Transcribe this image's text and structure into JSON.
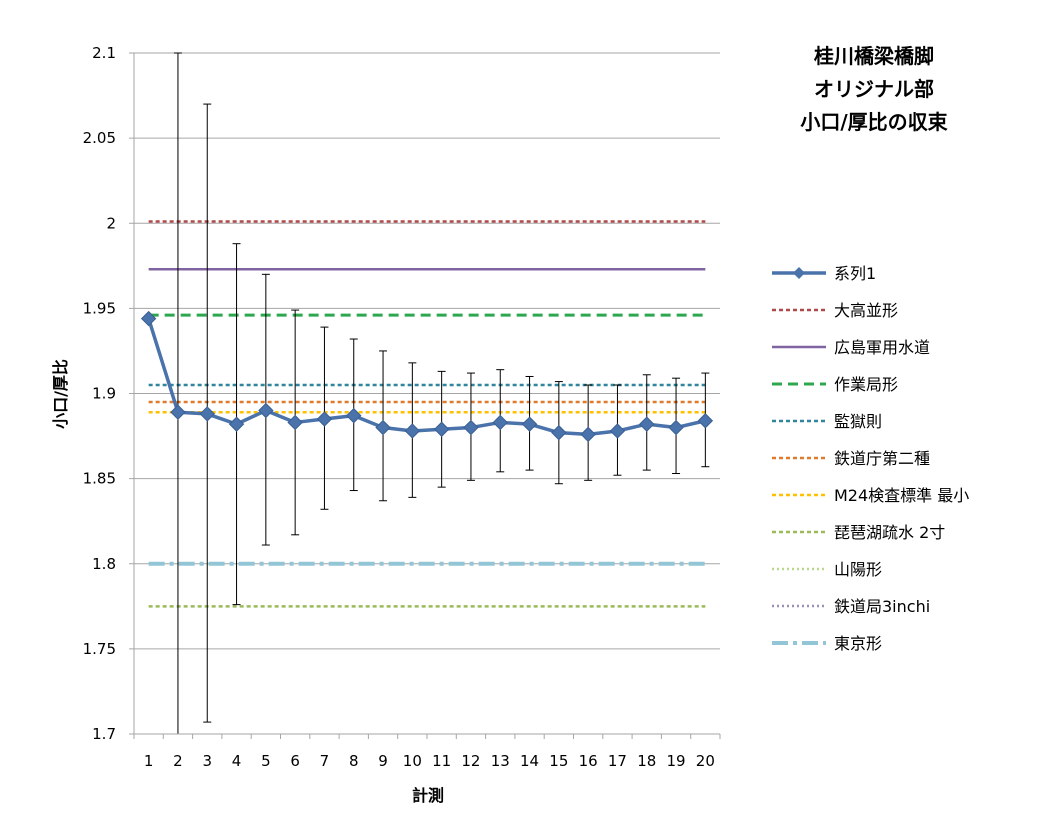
{
  "chart_data": {
    "type": "line",
    "title": [
      "桂川橋梁橋脚",
      "オリジナル部",
      "小口/厚比の収束"
    ],
    "xlabel": "計測",
    "ylabel": "小口/厚比",
    "categories": [
      "1",
      "2",
      "3",
      "4",
      "5",
      "6",
      "7",
      "8",
      "9",
      "10",
      "11",
      "12",
      "13",
      "14",
      "15",
      "16",
      "17",
      "18",
      "19",
      "20"
    ],
    "ylim": [
      1.7,
      2.1
    ],
    "yticks": [
      "1.7",
      "1.75",
      "1.8",
      "1.85",
      "1.9",
      "1.95",
      "2",
      "2.05",
      "2.1"
    ],
    "grid": "horizontal",
    "legend_position": "right",
    "series": [
      {
        "name": "系列1",
        "color": "#4a72ab",
        "values": [
          1.944,
          1.889,
          1.888,
          1.882,
          1.89,
          1.883,
          1.885,
          1.887,
          1.88,
          1.878,
          1.879,
          1.88,
          1.883,
          1.882,
          1.877,
          1.876,
          1.878,
          1.882,
          1.88,
          1.884
        ],
        "err_low": [
          1.944,
          1.7,
          1.707,
          1.776,
          1.811,
          1.817,
          1.832,
          1.843,
          1.837,
          1.839,
          1.845,
          1.849,
          1.854,
          1.855,
          1.847,
          1.849,
          1.852,
          1.855,
          1.853,
          1.857
        ],
        "err_high": [
          1.944,
          2.1,
          2.07,
          1.988,
          1.97,
          1.949,
          1.939,
          1.932,
          1.925,
          1.918,
          1.913,
          1.912,
          1.914,
          1.91,
          1.907,
          1.905,
          1.905,
          1.911,
          1.909,
          1.912
        ]
      }
    ],
    "reference_lines": [
      {
        "name": "大高並形",
        "value": 2.001,
        "color": "#b04a4a",
        "style": "dash"
      },
      {
        "name": "広島軍用水道",
        "value": 1.973,
        "color": "#8064a2",
        "style": "solid"
      },
      {
        "name": "作業局形",
        "value": 1.946,
        "color": "#2ea84f",
        "style": "longdash"
      },
      {
        "name": "監獄則",
        "value": 1.905,
        "color": "#31859c",
        "style": "dash"
      },
      {
        "name": "鉄道庁第二種",
        "value": 1.895,
        "color": "#e07b2e",
        "style": "dash"
      },
      {
        "name": "M24検査標準 最小",
        "value": 1.889,
        "color": "#ffc000",
        "style": "dash"
      },
      {
        "name": "琵琶湖疏水 2寸",
        "value": 1.775,
        "color": "#9bbb59",
        "style": "dash"
      },
      {
        "name": "山陽形",
        "value": null,
        "color": "#b8d88a",
        "style": "dot"
      },
      {
        "name": "鉄道局3inchi",
        "value": null,
        "color": "#9a8fb8",
        "style": "dot"
      },
      {
        "name": "東京形",
        "value": 1.8,
        "color": "#92c5d6",
        "style": "dashdot"
      }
    ]
  }
}
